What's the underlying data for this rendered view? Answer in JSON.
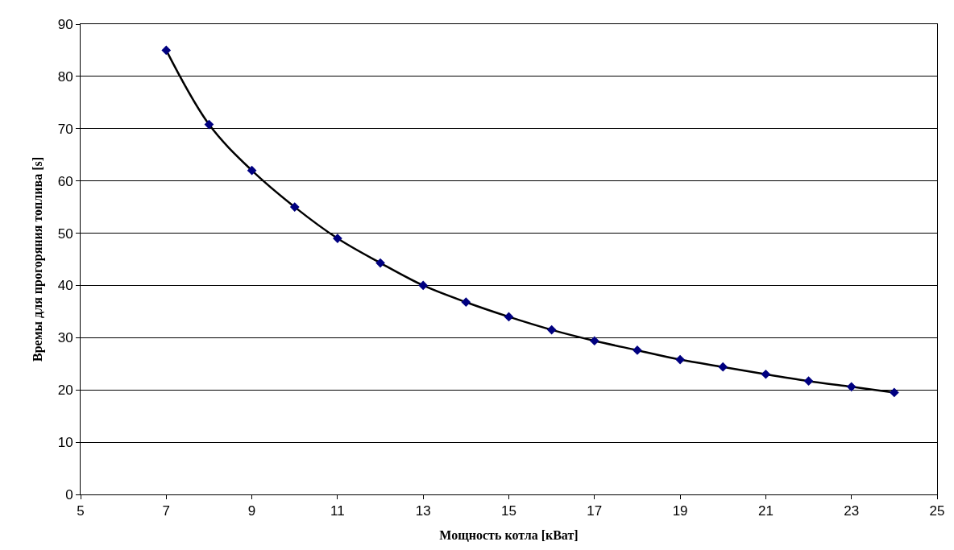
{
  "chart_data": {
    "type": "line",
    "xlabel": "Мощность котла [кВат]",
    "ylabel": "Времы для прогоряния топлива [s]",
    "x": [
      7,
      8,
      9,
      10,
      11,
      12,
      13,
      14,
      15,
      16,
      17,
      18,
      19,
      20,
      21,
      22,
      23,
      24
    ],
    "series": [
      {
        "color": "#000000",
        "marker": "none",
        "values": [
          85,
          70.8,
          62,
          55,
          49,
          44.3,
          40,
          36.8,
          34,
          31.5,
          29.4,
          27.6,
          25.8,
          24.4,
          23,
          21.7,
          20.6,
          19.5
        ]
      },
      {
        "type": "scatter",
        "color": "#000080",
        "marker": "diamond",
        "values": [
          85,
          70.8,
          62,
          55,
          49,
          44.3,
          40,
          36.8,
          34,
          31.5,
          29.4,
          27.6,
          25.8,
          24.4,
          23,
          21.7,
          20.6,
          19.5
        ]
      }
    ],
    "xlim": [
      5,
      25
    ],
    "xticks": [
      5,
      7,
      9,
      11,
      13,
      15,
      17,
      19,
      21,
      23,
      25
    ],
    "ylim": [
      0,
      90
    ],
    "yticks": [
      0,
      10,
      20,
      30,
      40,
      50,
      60,
      70,
      80,
      90
    ],
    "grid": "y",
    "legend": false
  }
}
